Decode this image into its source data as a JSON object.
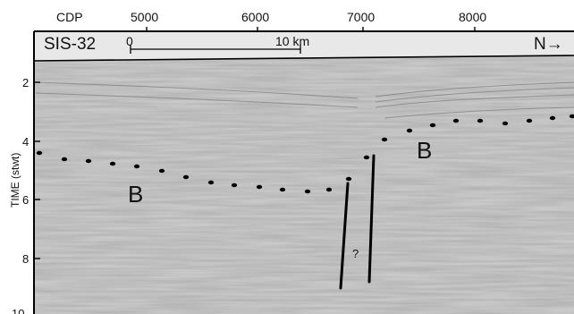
{
  "figure": {
    "line_name": "SIS-32",
    "direction": "N→",
    "cdp_label": "CDP",
    "cdp_ticks": [
      "5000",
      "6000",
      "7000",
      "8000"
    ],
    "y_axis_label": "TIME (stwt)",
    "time_ticks": [
      "2",
      "4",
      "6",
      "8",
      "10"
    ],
    "scale_bar": {
      "start_label": "0",
      "end_label": "10 km"
    },
    "horizon_labels": [
      "B",
      "B"
    ],
    "fault_label": "?"
  },
  "colors": {
    "header_band": "#e8e8e8",
    "seismic_base": "#c9c9c9",
    "ink": "#000000"
  }
}
